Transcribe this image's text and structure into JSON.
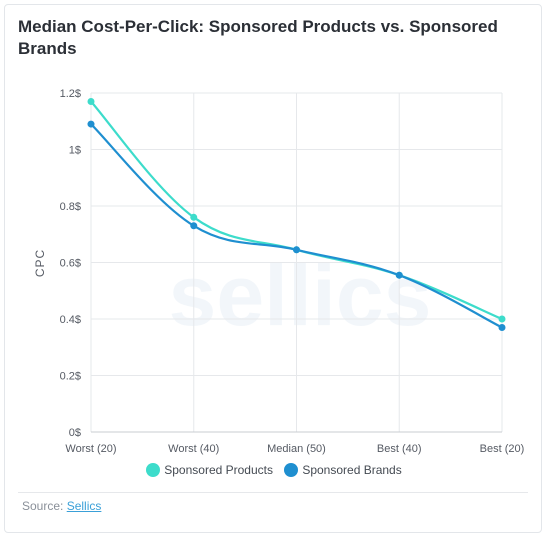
{
  "header": {
    "title": "Median Cost-Per-Click: Sponsored Products vs. Sponsored Brands"
  },
  "colors": {
    "products": "#3ddccb",
    "brands": "#1f8fd0",
    "grid": "#e6e8eb"
  },
  "chart_data": {
    "type": "line",
    "categories": [
      "Worst (20)",
      "Worst (40)",
      "Median (50)",
      "Best (40)",
      "Best (20)"
    ],
    "series": [
      {
        "name": "Sponsored Products",
        "values": [
          1.17,
          0.76,
          0.645,
          0.555,
          0.4
        ]
      },
      {
        "name": "Sponsored Brands",
        "values": [
          1.09,
          0.73,
          0.645,
          0.555,
          0.37
        ]
      }
    ],
    "ylabel": "CPC",
    "ylim": [
      0,
      1.2
    ],
    "yticks": [
      0,
      0.2,
      0.4,
      0.6,
      0.8,
      1,
      1.2
    ],
    "ytick_labels": [
      "0$",
      "0.2$",
      "0.4$",
      "0.6$",
      "0.8$",
      "1$",
      "1.2$"
    ],
    "grid": true,
    "legend": "bottom",
    "watermark": "sellics"
  },
  "source": {
    "label": "Source:",
    "link_text": "Sellics"
  }
}
